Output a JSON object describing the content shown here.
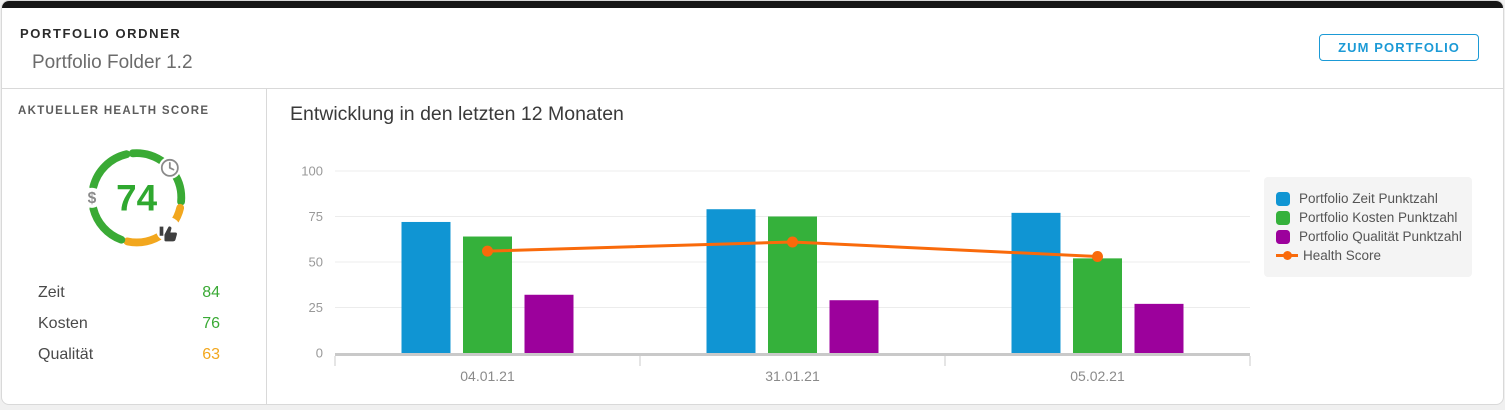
{
  "header": {
    "eyebrow": "PORTFOLIO ORDNER",
    "title": "Portfolio Folder 1.2",
    "action_label": "ZUM PORTFOLIO"
  },
  "sidebar": {
    "title": "AKTUELLER HEALTH SCORE",
    "gauge": {
      "value": 74,
      "icons": [
        "clock",
        "dollar",
        "thumbs-up"
      ],
      "ring_colors": {
        "green": "#3aaa35",
        "orange": "#f2a71e"
      }
    },
    "scores": [
      {
        "label": "Zeit",
        "value": 84,
        "color": "#3aaa35"
      },
      {
        "label": "Kosten",
        "value": 76,
        "color": "#3aaa35"
      },
      {
        "label": "Qualität",
        "value": 63,
        "color": "#f2a71e"
      }
    ]
  },
  "chart_data": {
    "type": "bar",
    "title": "Entwicklung in den letzten 12 Monaten",
    "categories": [
      "04.01.21",
      "31.01.21",
      "05.02.21"
    ],
    "series": [
      {
        "name": "Portfolio Zeit Punktzahl",
        "type": "bar",
        "color": "#1095d3",
        "values": [
          72,
          79,
          77
        ]
      },
      {
        "name": "Portfolio Kosten Punktzahl",
        "type": "bar",
        "color": "#35b13b",
        "values": [
          64,
          75,
          52
        ]
      },
      {
        "name": "Portfolio Qualität Punktzahl",
        "type": "bar",
        "color": "#9c019c",
        "values": [
          32,
          29,
          27
        ]
      },
      {
        "name": "Health Score",
        "type": "line",
        "color": "#f96a0b",
        "values": [
          56,
          61,
          53
        ]
      }
    ],
    "xlabel": "",
    "ylabel": "",
    "ylim": [
      0,
      100
    ],
    "yticks": [
      0,
      25,
      50,
      75,
      100
    ],
    "grid": true,
    "legend_position": "right"
  },
  "colors": {
    "accent_blue": "#1b9ad6",
    "score_green": "#3aaa35",
    "score_orange": "#f2a71e",
    "gauge_value_green": "#2fa82f"
  }
}
